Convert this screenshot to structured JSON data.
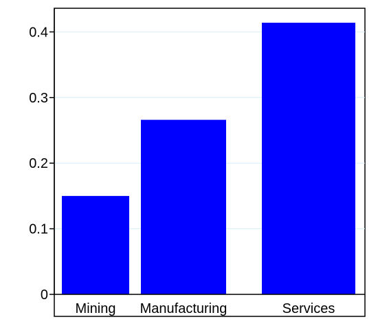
{
  "chart_data": {
    "type": "bar",
    "categories": [
      "Mining",
      "Manufacturing",
      "Services"
    ],
    "values": [
      0.15,
      0.266,
      0.414
    ],
    "ylim": [
      0,
      0.42
    ],
    "yticks": [
      0,
      0.1,
      0.2,
      0.3,
      0.4
    ],
    "ytick_labels": [
      "0",
      "0.1",
      "0.2",
      "0.3",
      "0.4"
    ],
    "title": "",
    "xlabel": "",
    "ylabel": "",
    "grid": true,
    "bar_color": "#0000ff",
    "grid_color": "#d6eef7"
  }
}
